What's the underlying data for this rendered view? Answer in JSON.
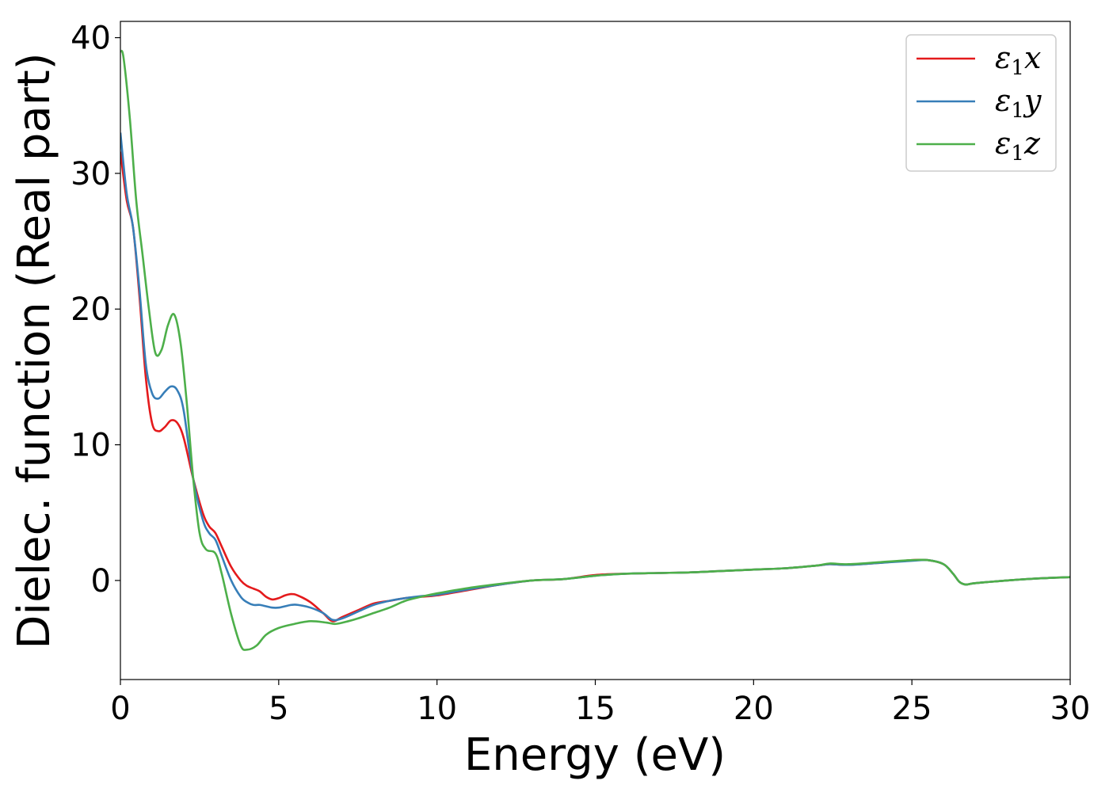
{
  "chart_data": {
    "type": "line",
    "title": "",
    "xlabel": "Energy (eV)",
    "ylabel": "Dielec. function (Real part)",
    "xlim": [
      0,
      30
    ],
    "ylim": [
      -7.3,
      41.2
    ],
    "xticks": [
      0,
      5,
      10,
      15,
      20,
      25,
      30
    ],
    "yticks": [
      0,
      10,
      20,
      30,
      40
    ],
    "xtick_labels": [
      "0",
      "5",
      "10",
      "15",
      "20",
      "25",
      "30"
    ],
    "ytick_labels": [
      "0",
      "10",
      "20",
      "30",
      "40"
    ],
    "grid": false,
    "legend_position": "top-right",
    "series": [
      {
        "name": "ε1x",
        "legend_base": "ε",
        "legend_sub": "1",
        "legend_var": "x",
        "color": "#e41a1c",
        "x": [
          0.0,
          0.2,
          0.4,
          0.6,
          0.8,
          1.0,
          1.2,
          1.4,
          1.6,
          1.8,
          2.0,
          2.3,
          2.6,
          2.8,
          3.0,
          3.2,
          3.5,
          3.8,
          4.0,
          4.2,
          4.4,
          4.6,
          4.8,
          5.0,
          5.2,
          5.4,
          5.6,
          6.0,
          6.4,
          6.7,
          7.0,
          7.5,
          8.0,
          8.5,
          9.0,
          9.5,
          10.0,
          11.0,
          12.0,
          13.0,
          14.0,
          15.0,
          16.0,
          17.0,
          18.0,
          19.0,
          20.0,
          21.0,
          22.0,
          22.4,
          23.0,
          24.0,
          25.0,
          25.5,
          26.0,
          26.3,
          26.5,
          26.7,
          27.0,
          28.0,
          29.0,
          30.0
        ],
        "y": [
          31.6,
          28.0,
          26.0,
          21.0,
          15.0,
          11.6,
          11.0,
          11.3,
          11.8,
          11.6,
          10.5,
          7.5,
          5.0,
          4.0,
          3.5,
          2.5,
          1.0,
          0.0,
          -0.4,
          -0.6,
          -0.8,
          -1.2,
          -1.4,
          -1.3,
          -1.1,
          -1.0,
          -1.1,
          -1.6,
          -2.4,
          -3.0,
          -2.7,
          -2.2,
          -1.7,
          -1.5,
          -1.3,
          -1.2,
          -1.1,
          -0.7,
          -0.3,
          0.0,
          0.1,
          0.4,
          0.5,
          0.55,
          0.6,
          0.7,
          0.8,
          0.9,
          1.1,
          1.2,
          1.15,
          1.3,
          1.5,
          1.5,
          1.2,
          0.5,
          -0.1,
          -0.3,
          -0.2,
          0.0,
          0.15,
          0.25
        ]
      },
      {
        "name": "ε1y",
        "legend_base": "ε",
        "legend_sub": "1",
        "legend_var": "y",
        "color": "#377eb8",
        "x": [
          0.0,
          0.2,
          0.4,
          0.6,
          0.8,
          1.0,
          1.2,
          1.4,
          1.6,
          1.8,
          2.0,
          2.3,
          2.6,
          2.8,
          3.0,
          3.2,
          3.5,
          3.8,
          4.0,
          4.2,
          4.4,
          4.6,
          4.8,
          5.0,
          5.2,
          5.4,
          5.6,
          6.0,
          6.4,
          6.7,
          7.0,
          7.5,
          8.0,
          8.5,
          9.0,
          9.5,
          10.0,
          11.0,
          12.0,
          13.0,
          14.0,
          15.0,
          16.0,
          17.0,
          18.0,
          19.0,
          20.0,
          21.0,
          22.0,
          22.4,
          23.0,
          24.0,
          25.0,
          25.5,
          26.0,
          26.3,
          26.5,
          26.7,
          27.0,
          28.0,
          29.0,
          30.0
        ],
        "y": [
          33.0,
          28.5,
          26.0,
          21.5,
          16.0,
          13.8,
          13.4,
          13.9,
          14.3,
          14.0,
          12.5,
          7.5,
          4.5,
          3.5,
          3.0,
          1.8,
          0.0,
          -1.2,
          -1.6,
          -1.8,
          -1.8,
          -1.9,
          -2.0,
          -2.0,
          -1.9,
          -1.8,
          -1.8,
          -2.0,
          -2.4,
          -2.9,
          -2.8,
          -2.3,
          -1.8,
          -1.5,
          -1.3,
          -1.15,
          -1.05,
          -0.65,
          -0.3,
          0.0,
          0.1,
          0.35,
          0.5,
          0.55,
          0.6,
          0.7,
          0.8,
          0.9,
          1.1,
          1.2,
          1.15,
          1.3,
          1.45,
          1.5,
          1.2,
          0.5,
          -0.1,
          -0.3,
          -0.2,
          0.0,
          0.15,
          0.25
        ]
      },
      {
        "name": "ε1z",
        "legend_base": "ε",
        "legend_sub": "1",
        "legend_var": "z",
        "color": "#4daf4a",
        "x": [
          0.0,
          0.1,
          0.3,
          0.5,
          0.7,
          0.9,
          1.1,
          1.3,
          1.5,
          1.7,
          1.9,
          2.1,
          2.3,
          2.5,
          2.7,
          3.0,
          3.2,
          3.5,
          3.8,
          4.0,
          4.3,
          4.6,
          5.0,
          5.5,
          6.0,
          6.5,
          6.8,
          7.2,
          7.5,
          8.0,
          8.5,
          9.0,
          9.5,
          10.0,
          11.0,
          12.0,
          13.0,
          14.0,
          15.0,
          16.0,
          17.0,
          18.0,
          19.0,
          20.0,
          21.0,
          22.0,
          22.4,
          23.0,
          24.0,
          25.0,
          25.5,
          26.0,
          26.3,
          26.5,
          26.7,
          27.0,
          28.0,
          29.0,
          30.0
        ],
        "y": [
          39.0,
          38.5,
          34.0,
          28.0,
          24.0,
          20.0,
          16.8,
          17.0,
          18.8,
          19.6,
          17.5,
          13.0,
          7.5,
          3.5,
          2.3,
          2.0,
          0.5,
          -2.5,
          -4.8,
          -5.1,
          -4.8,
          -4.0,
          -3.5,
          -3.2,
          -3.0,
          -3.1,
          -3.2,
          -3.0,
          -2.8,
          -2.4,
          -2.0,
          -1.5,
          -1.2,
          -0.95,
          -0.55,
          -0.25,
          0.0,
          0.1,
          0.35,
          0.5,
          0.55,
          0.6,
          0.7,
          0.8,
          0.9,
          1.1,
          1.25,
          1.2,
          1.35,
          1.5,
          1.5,
          1.2,
          0.5,
          -0.1,
          -0.3,
          -0.2,
          0.0,
          0.15,
          0.25
        ]
      }
    ]
  }
}
